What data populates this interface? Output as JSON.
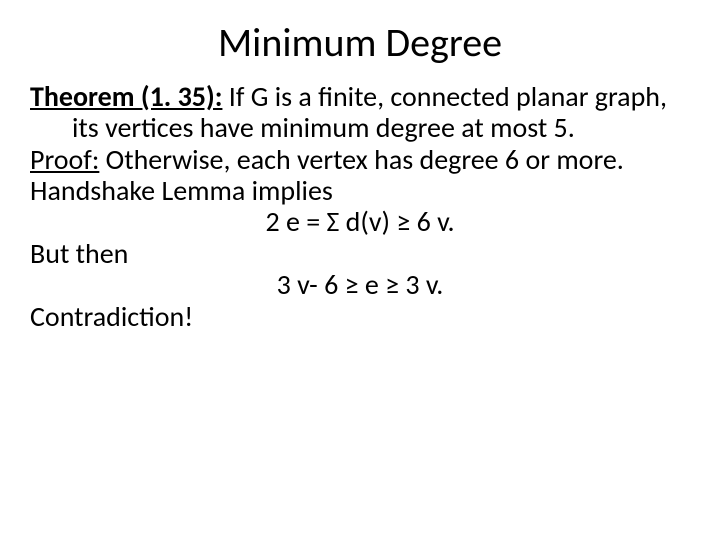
{
  "title": "Minimum Degree",
  "theorem_label": "Theorem (1. 35):",
  "theorem_text": " If G is a finite, connected planar graph, its vertices have minimum degree at most 5.",
  "proof_label": "Proof:",
  "proof_text": " Otherwise, each vertex has degree 6 or more.",
  "line_handshake": "Handshake Lemma implies",
  "eq1": "2 e = Σ d(v) ≥ 6 v.",
  "line_but": "But then",
  "eq2": "3 v- 6 ≥ e ≥ 3 v.",
  "line_contradiction": "Contradiction!"
}
